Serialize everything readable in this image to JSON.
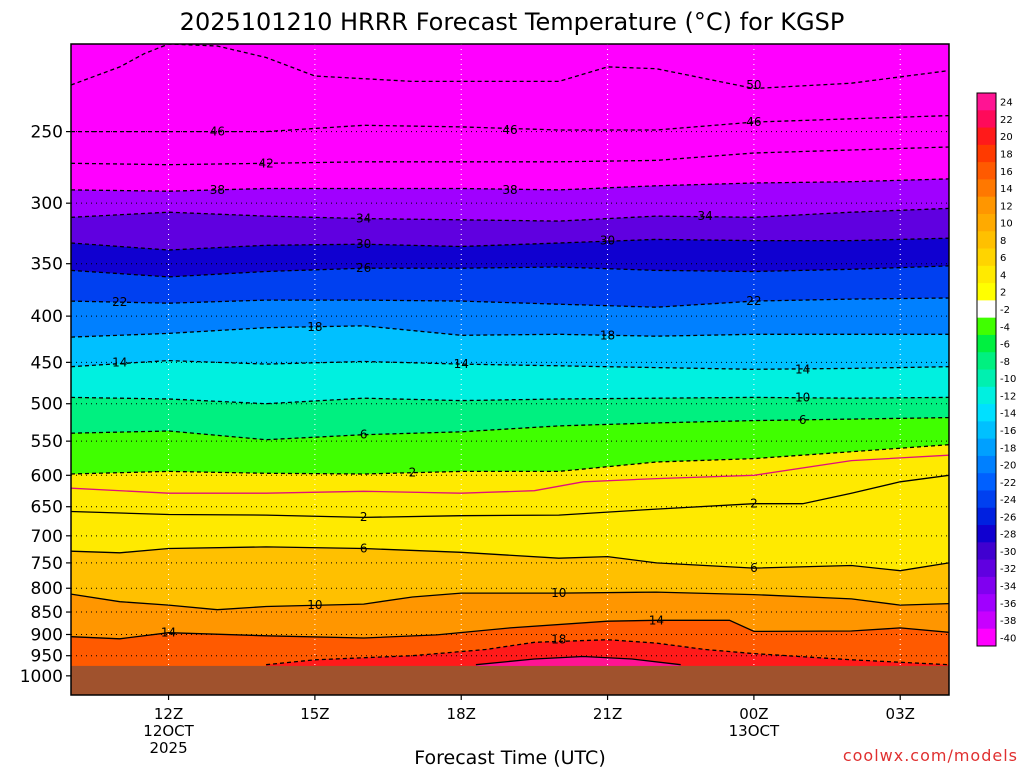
{
  "chart_data": {
    "type": "contour",
    "title": "2025101210 HRRR Forecast Temperature (°C) for KGSP",
    "xlabel": "Forecast Time (UTC)",
    "ylabel": "",
    "credit": "coolwx.com/models",
    "x_start_hours": 10.0,
    "x_end_hours": 28.0,
    "y_axis": {
      "type": "log-pressure",
      "units": "hPa",
      "top": 200,
      "bottom": 1050
    },
    "y_ticks": [
      250,
      300,
      350,
      400,
      450,
      500,
      550,
      600,
      650,
      700,
      750,
      800,
      850,
      900,
      950,
      1000
    ],
    "y_tick_labels": [
      "250",
      "300",
      "350",
      "400",
      "450",
      "500",
      "550",
      "600",
      "650",
      "700",
      "750",
      "800",
      "850",
      "900",
      "950",
      "1000"
    ],
    "x_ticks": [
      {
        "hour": 12,
        "lines": [
          "12Z",
          "12OCT",
          "2025"
        ]
      },
      {
        "hour": 15,
        "lines": [
          "15Z"
        ]
      },
      {
        "hour": 18,
        "lines": [
          "18Z"
        ]
      },
      {
        "hour": 21,
        "lines": [
          "21Z"
        ]
      },
      {
        "hour": 24,
        "lines": [
          "00Z",
          "13OCT"
        ]
      },
      {
        "hour": 27,
        "lines": [
          "03Z"
        ]
      }
    ],
    "ground_level_hPa": 975,
    "ground_color": "#a0522d",
    "colorbar": {
      "labels": [
        "24",
        "22",
        "20",
        "18",
        "16",
        "14",
        "12",
        "10",
        "8",
        "6",
        "4",
        "2",
        "-2",
        "-4",
        "-6",
        "-8",
        "-10",
        "-12",
        "-14",
        "-16",
        "-18",
        "-20",
        "-22",
        "-24",
        "-26",
        "-28",
        "-30",
        "-32",
        "-34",
        "-36",
        "-38",
        "-40"
      ],
      "colors": [
        "#ff1493",
        "#ff0a5a",
        "#ff1a1a",
        "#ff3a00",
        "#ff5a00",
        "#ff7800",
        "#ff9600",
        "#ffaa00",
        "#ffc000",
        "#ffd400",
        "#ffea00",
        "#ffff00",
        "#ffffff",
        "#40ff00",
        "#00f040",
        "#00f080",
        "#00f0b0",
        "#00f0e0",
        "#00e0ff",
        "#00c0ff",
        "#00a0ff",
        "#0080ff",
        "#0060ff",
        "#0040f0",
        "#0020e0",
        "#1000d0",
        "#4000d0",
        "#6000e0",
        "#8000f0",
        "#a000ff",
        "#c800ff",
        "#ff00ff"
      ]
    },
    "temperature_profile_start": {
      "pressure_hPa": [
        230,
        250,
        270,
        290,
        310,
        330,
        355,
        385,
        420,
        455,
        495,
        540,
        590,
        640,
        660,
        730,
        810,
        905,
        975
      ],
      "temp_C": [
        -50,
        -46,
        -42,
        -38,
        -34,
        -30,
        -26,
        -22,
        -18,
        -14,
        -10,
        -6,
        -2,
        2,
        2,
        6,
        10,
        14,
        17
      ]
    },
    "contours": [
      {
        "level": -50,
        "dashed": true,
        "hours": [
          10,
          11,
          11.5,
          12,
          13,
          14,
          15,
          17,
          20,
          21,
          22,
          24,
          26,
          28
        ],
        "pressure_hPa": [
          222,
          212,
          205,
          200,
          201,
          207,
          217,
          220,
          220,
          212,
          213,
          224,
          221,
          214
        ]
      },
      {
        "level": -46,
        "dashed": true,
        "hours": [
          10,
          12,
          14,
          16,
          18,
          20,
          22,
          24,
          26,
          28
        ],
        "pressure_hPa": [
          250,
          250,
          250,
          246,
          247,
          249,
          249,
          244,
          242,
          240
        ]
      },
      {
        "level": -42,
        "dashed": true,
        "hours": [
          10,
          12,
          14,
          16,
          18,
          20,
          22,
          24,
          26,
          28
        ],
        "pressure_hPa": [
          271,
          272,
          271,
          270,
          270,
          270,
          269,
          264,
          262,
          260
        ]
      },
      {
        "level": -38,
        "dashed": true,
        "hours": [
          10,
          12,
          14,
          16,
          18,
          20,
          22,
          24,
          26,
          28
        ],
        "pressure_hPa": [
          290,
          291,
          289,
          289,
          289,
          290,
          287,
          285,
          284,
          282
        ]
      },
      {
        "level": -34,
        "dashed": true,
        "hours": [
          10,
          12,
          14,
          16,
          18,
          20,
          22,
          24,
          26,
          28
        ],
        "pressure_hPa": [
          311,
          307,
          310,
          312,
          313,
          314,
          310,
          311,
          307,
          304
        ]
      },
      {
        "level": -30,
        "dashed": true,
        "hours": [
          10,
          12,
          14,
          16,
          18,
          20,
          22,
          24,
          26,
          28
        ],
        "pressure_hPa": [
          332,
          338,
          334,
          333,
          335,
          332,
          329,
          330,
          330,
          328
        ]
      },
      {
        "level": -26,
        "dashed": true,
        "hours": [
          10,
          12,
          14,
          16,
          18,
          20,
          22,
          24,
          26,
          28
        ],
        "pressure_hPa": [
          356,
          362,
          357,
          354,
          354,
          353,
          356,
          357,
          355,
          352
        ]
      },
      {
        "level": -22,
        "dashed": true,
        "hours": [
          10,
          12,
          14,
          16,
          18,
          20,
          22,
          24,
          26,
          28
        ],
        "pressure_hPa": [
          385,
          387,
          384,
          384,
          385,
          388,
          391,
          385,
          383,
          382
        ]
      },
      {
        "level": -18,
        "dashed": true,
        "hours": [
          10,
          12,
          14,
          16,
          18,
          20,
          22,
          24,
          26,
          28
        ],
        "pressure_hPa": [
          422,
          418,
          412,
          410,
          420,
          419,
          421,
          419,
          419,
          419
        ]
      },
      {
        "level": -14,
        "dashed": true,
        "hours": [
          10,
          12,
          14,
          16,
          18,
          20,
          22,
          24,
          26,
          28
        ],
        "pressure_hPa": [
          455,
          448,
          452,
          449,
          452,
          454,
          456,
          458,
          457,
          455
        ]
      },
      {
        "level": -10,
        "dashed": true,
        "hours": [
          10,
          12,
          14,
          16,
          18,
          20,
          22,
          24,
          26,
          28
        ],
        "pressure_hPa": [
          492,
          494,
          500,
          493,
          496,
          494,
          493,
          492,
          493,
          492
        ]
      },
      {
        "level": -6,
        "dashed": true,
        "hours": [
          10,
          12,
          14,
          16,
          18,
          20,
          22,
          24,
          26,
          28
        ],
        "pressure_hPa": [
          539,
          536,
          548,
          541,
          537,
          529,
          525,
          522,
          520,
          518
        ]
      },
      {
        "level": -2,
        "dashed": false,
        "color": "#e0107a",
        "hours": [
          10,
          12,
          14,
          16,
          18,
          19.5,
          20.5,
          22,
          24,
          26,
          28
        ],
        "pressure_hPa": [
          620,
          628,
          628,
          625,
          628,
          624,
          610,
          605,
          600,
          578,
          570
        ]
      },
      {
        "level": 2,
        "dashed": true,
        "hours": [
          10,
          12,
          14,
          16,
          18,
          20,
          22,
          24,
          26,
          28
        ],
        "pressure_hPa": [
          598,
          594,
          597,
          598,
          594,
          594,
          580,
          575,
          565,
          555
        ]
      },
      {
        "level": 2,
        "dashed": false,
        "hours": [
          10,
          12,
          14,
          16,
          18,
          20,
          22,
          24,
          25,
          26,
          27,
          28
        ],
        "pressure_hPa": [
          658,
          663,
          664,
          668,
          665,
          664,
          654,
          645,
          645,
          628,
          610,
          600
        ]
      },
      {
        "level": 6,
        "dashed": false,
        "hours": [
          10,
          11,
          12,
          14,
          16,
          18,
          20,
          21,
          22,
          24,
          26,
          27,
          28
        ],
        "pressure_hPa": [
          728,
          731,
          723,
          720,
          723,
          730,
          741,
          738,
          750,
          760,
          755,
          765,
          750
        ]
      },
      {
        "level": 10,
        "dashed": false,
        "hours": [
          10,
          11,
          12,
          13,
          14,
          16,
          17,
          18,
          20,
          22,
          24,
          26,
          27,
          28
        ],
        "pressure_hPa": [
          812,
          828,
          835,
          845,
          838,
          833,
          818,
          810,
          810,
          808,
          813,
          822,
          835,
          832
        ]
      },
      {
        "level": 14,
        "dashed": false,
        "hours": [
          10,
          11,
          12,
          14,
          16,
          17.5,
          19,
          21,
          22,
          23.5,
          24,
          26,
          27,
          28
        ],
        "pressure_hPa": [
          905,
          910,
          896,
          903,
          908,
          901,
          885,
          870,
          868,
          868,
          893,
          892,
          885,
          895
        ]
      },
      {
        "level": 18,
        "dashed": true,
        "hours": [
          14,
          15,
          17,
          18.5,
          19.5,
          21,
          22,
          23,
          24,
          26,
          28
        ],
        "pressure_hPa": [
          972,
          960,
          950,
          935,
          918,
          912,
          920,
          935,
          945,
          960,
          972
        ]
      },
      {
        "level": 22,
        "dashed": false,
        "hours": [
          18.3,
          19.5,
          20.5,
          21.5,
          22.5
        ],
        "pressure_hPa": [
          972,
          958,
          952,
          958,
          972
        ]
      }
    ],
    "contour_labels": [
      {
        "text": "50",
        "hour": 24,
        "pressure_hPa": 222
      },
      {
        "text": "46",
        "hour": 13,
        "pressure_hPa": 250
      },
      {
        "text": "46",
        "hour": 19,
        "pressure_hPa": 249
      },
      {
        "text": "46",
        "hour": 24,
        "pressure_hPa": 244
      },
      {
        "text": "42",
        "hour": 14,
        "pressure_hPa": 271
      },
      {
        "text": "38",
        "hour": 13,
        "pressure_hPa": 290
      },
      {
        "text": "38",
        "hour": 19,
        "pressure_hPa": 290
      },
      {
        "text": "34",
        "hour": 16,
        "pressure_hPa": 312
      },
      {
        "text": "34",
        "hour": 23,
        "pressure_hPa": 310
      },
      {
        "text": "30",
        "hour": 16,
        "pressure_hPa": 333
      },
      {
        "text": "30",
        "hour": 21,
        "pressure_hPa": 330
      },
      {
        "text": "26",
        "hour": 16,
        "pressure_hPa": 354
      },
      {
        "text": "22",
        "hour": 11,
        "pressure_hPa": 386
      },
      {
        "text": "22",
        "hour": 24,
        "pressure_hPa": 385
      },
      {
        "text": "18",
        "hour": 15,
        "pressure_hPa": 411
      },
      {
        "text": "18",
        "hour": 21,
        "pressure_hPa": 420
      },
      {
        "text": "14",
        "hour": 11,
        "pressure_hPa": 450
      },
      {
        "text": "14",
        "hour": 18,
        "pressure_hPa": 452
      },
      {
        "text": "14",
        "hour": 25,
        "pressure_hPa": 458
      },
      {
        "text": "10",
        "hour": 25,
        "pressure_hPa": 492
      },
      {
        "text": "6",
        "hour": 16,
        "pressure_hPa": 541
      },
      {
        "text": "6",
        "hour": 25,
        "pressure_hPa": 521
      },
      {
        "text": "2",
        "hour": 17,
        "pressure_hPa": 596
      },
      {
        "text": "2",
        "hour": 16,
        "pressure_hPa": 667
      },
      {
        "text": "2",
        "hour": 24,
        "pressure_hPa": 645
      },
      {
        "text": "6",
        "hour": 16,
        "pressure_hPa": 723
      },
      {
        "text": "6",
        "hour": 24,
        "pressure_hPa": 760
      },
      {
        "text": "10",
        "hour": 15,
        "pressure_hPa": 835
      },
      {
        "text": "10",
        "hour": 20,
        "pressure_hPa": 810
      },
      {
        "text": "14",
        "hour": 12,
        "pressure_hPa": 896
      },
      {
        "text": "14",
        "hour": 22,
        "pressure_hPa": 868
      },
      {
        "text": "18",
        "hour": 20,
        "pressure_hPa": 912
      }
    ]
  }
}
